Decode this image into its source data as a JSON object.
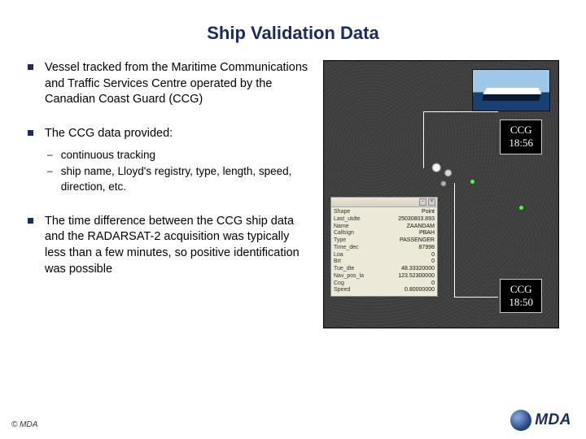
{
  "title": "Ship Validation Data",
  "bullets": {
    "b1": "Vessel tracked from the Maritime Communications and Traffic Services Centre operated by the Canadian Coast Guard (CCG)",
    "b2": "The CCG data provided:",
    "b2subs": {
      "s1": "continuous tracking",
      "s2": "ship name, Lloyd's registry, type, length, speed, direction, etc."
    },
    "b3": "The time difference between the CCG ship data and the RADARSAT-2 acquisition was typically less than a few minutes, so positive identification was possible"
  },
  "footer": "© MDA",
  "logo_text": "MDA",
  "sar": {
    "label1_line1": "CCG",
    "label1_line2": "18:56",
    "label2_line1": "CCG",
    "label2_line2": "18:50",
    "panel_bg": "#3b3b3b",
    "dot_color": "#3fff3f"
  },
  "info": {
    "rows": [
      [
        "Shape",
        "Point"
      ],
      [
        "Last_utdte",
        "25030803.893"
      ],
      [
        "Name",
        "ZAANDAM"
      ],
      [
        "Callsign",
        "PBAH"
      ],
      [
        "Type",
        "PASSENGER"
      ],
      [
        "Time_dec",
        "87998"
      ],
      [
        "Loa",
        "0"
      ],
      [
        "Brt",
        "0"
      ],
      [
        "Tue_dte",
        "48.33320000"
      ],
      [
        "Nav_pos_la",
        "123.52300000"
      ],
      [
        "Cog",
        "0"
      ],
      [
        "Speed",
        "0.80000000"
      ]
    ]
  }
}
